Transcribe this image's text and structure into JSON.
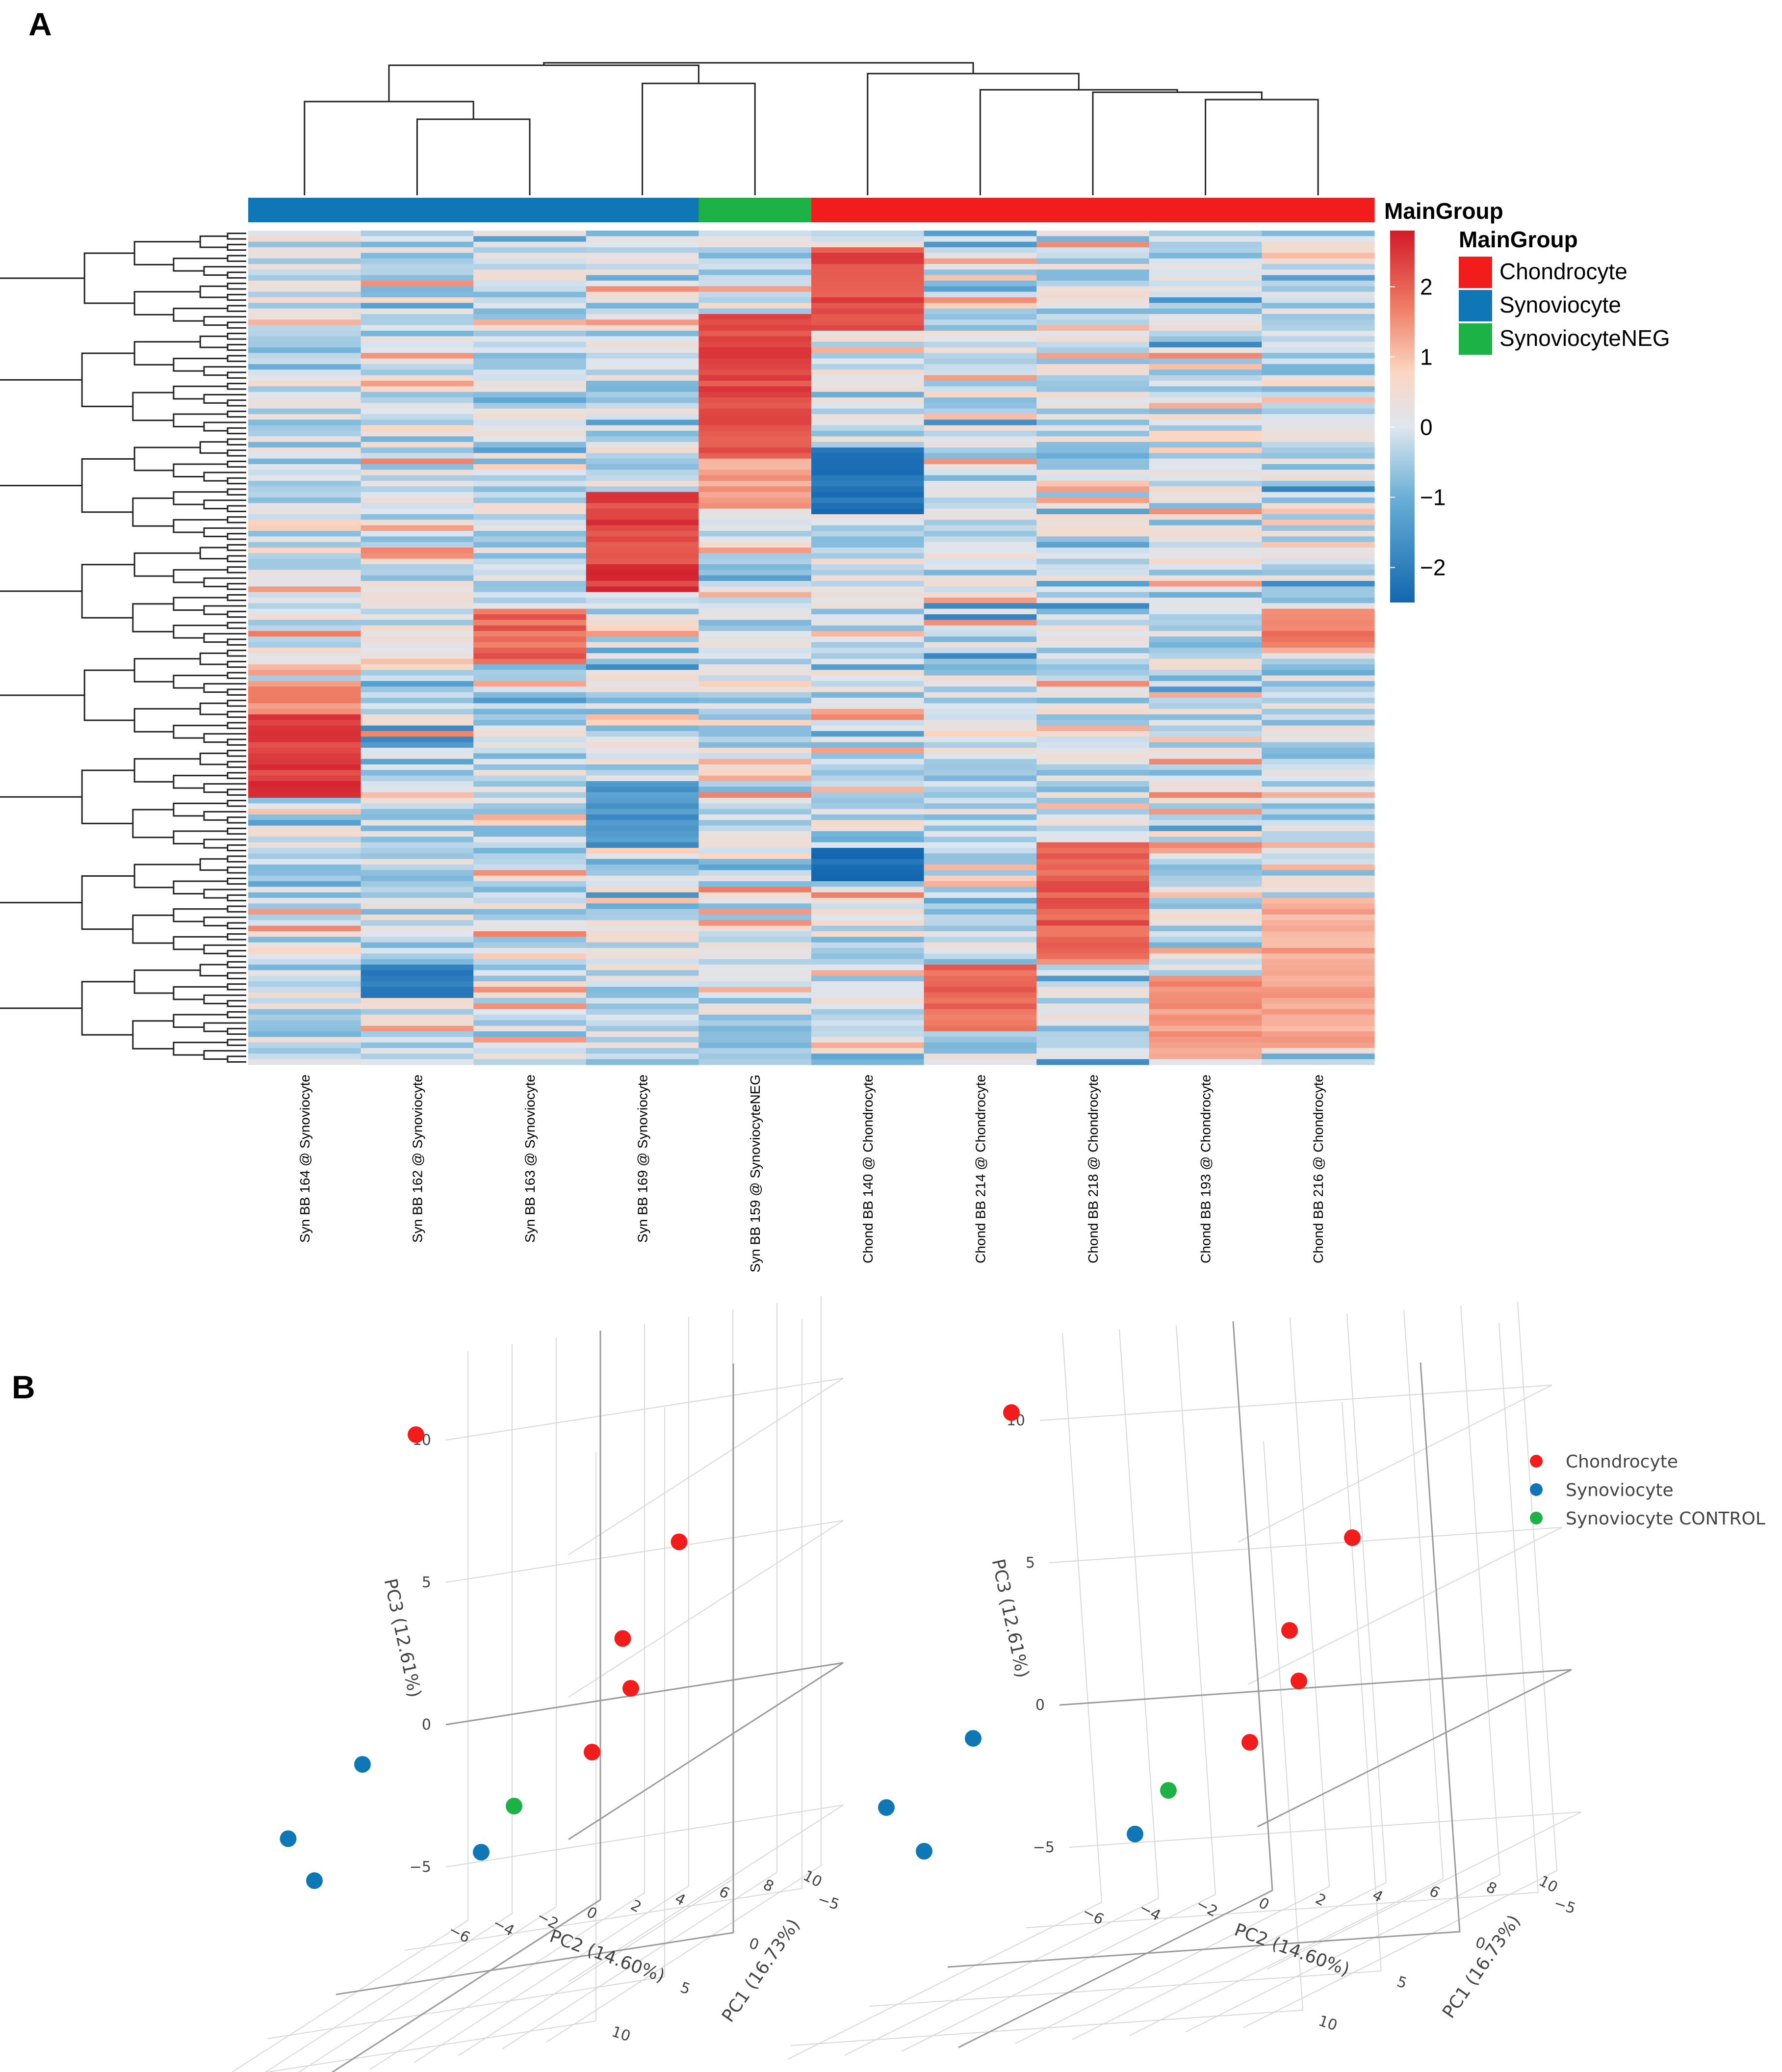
{
  "panels": {
    "a": "A",
    "b": "B"
  },
  "colors": {
    "chondrocyte": "#f31c1c",
    "synoviocyte": "#0f77b6",
    "synoviocyte_neg": "#1db246",
    "heat_low": "#1267b0",
    "heat_mid": "#dde6ef",
    "heat_high": "#d11a2a"
  },
  "chart_data": [
    {
      "type": "heatmap",
      "annotation": {
        "bar_label": "MainGroup",
        "legend_title": "MainGroup",
        "legend_items": [
          {
            "label": "Chondrocyte",
            "color": "#f31c1c"
          },
          {
            "label": "Synoviocyte",
            "color": "#0f77b6"
          },
          {
            "label": "SynoviocyteNEG",
            "color": "#1db246"
          }
        ]
      },
      "columns": [
        {
          "label": "Syn BB 164 @ Synoviocyte",
          "group": "Synoviocyte"
        },
        {
          "label": "Syn BB 162 @ Synoviocyte",
          "group": "Synoviocyte"
        },
        {
          "label": "Syn BB 163 @ Synoviocyte",
          "group": "Synoviocyte"
        },
        {
          "label": "Syn BB 169 @ Synoviocyte",
          "group": "Synoviocyte"
        },
        {
          "label": "Syn BB 159 @ SynoviocyteNEG",
          "group": "SynoviocyteNEG"
        },
        {
          "label": "Chond BB 140 @ Chondrocyte",
          "group": "Chondrocyte"
        },
        {
          "label": "Chond BB 214 @ Chondrocyte",
          "group": "Chondrocyte"
        },
        {
          "label": "Chond BB 218 @ Chondrocyte",
          "group": "Chondrocyte"
        },
        {
          "label": "Chond BB 193 @ Chondrocyte",
          "group": "Chondrocyte"
        },
        {
          "label": "Chond BB 216 @ Chondrocyte",
          "group": "Chondrocyte"
        }
      ],
      "row_count": 150,
      "color_scale": {
        "min": -2.5,
        "max": 2.8,
        "ticks": [
          "2",
          "1",
          "0",
          "−1",
          "−2"
        ],
        "tick_values": [
          2,
          1,
          0,
          -1,
          -2
        ]
      },
      "cluster_blocks": [
        {
          "column": 0,
          "rows_from": 0.58,
          "rows_to": 0.68,
          "value": 2.5
        },
        {
          "column": 0,
          "rows_from": 0.54,
          "rows_to": 0.58,
          "value": 1.6
        },
        {
          "column": 2,
          "rows_from": 0.45,
          "rows_to": 0.52,
          "value": 2.0
        },
        {
          "column": 3,
          "rows_from": 0.31,
          "rows_to": 0.43,
          "value": 2.4
        },
        {
          "column": 4,
          "rows_from": 0.1,
          "rows_to": 0.27,
          "value": 2.3
        },
        {
          "column": 4,
          "rows_from": 0.27,
          "rows_to": 0.33,
          "value": 1.4
        },
        {
          "column": 5,
          "rows_from": 0.02,
          "rows_to": 0.12,
          "value": 2.3
        },
        {
          "column": 5,
          "rows_from": 0.26,
          "rows_to": 0.34,
          "value": -2.2
        },
        {
          "column": 5,
          "rows_from": 0.74,
          "rows_to": 0.78,
          "value": -2.3
        },
        {
          "column": 6,
          "rows_from": 0.88,
          "rows_to": 0.96,
          "value": 1.9
        },
        {
          "column": 7,
          "rows_from": 0.73,
          "rows_to": 0.87,
          "value": 2.1
        },
        {
          "column": 8,
          "rows_from": 0.89,
          "rows_to": 0.99,
          "value": 1.5
        },
        {
          "column": 9,
          "rows_from": 0.8,
          "rows_to": 0.98,
          "value": 1.3
        },
        {
          "column": 9,
          "rows_from": 0.45,
          "rows_to": 0.5,
          "value": 1.7
        },
        {
          "column": 3,
          "rows_from": 0.66,
          "rows_to": 0.74,
          "value": -1.5
        },
        {
          "column": 1,
          "rows_from": 0.88,
          "rows_to": 0.92,
          "value": -2.0
        }
      ]
    },
    {
      "type": "scatter3d",
      "xlabel": "PC1 (16.73%)",
      "ylabel": "PC2 (14.60%)",
      "zlabel": "PC3 (12.61%)",
      "x_ticks": [
        "−5",
        "0",
        "5",
        "10"
      ],
      "y_ticks": [
        "−6",
        "−4",
        "−2",
        "0",
        "2",
        "4",
        "6",
        "8",
        "10"
      ],
      "z_ticks": [
        "−5",
        "0",
        "5",
        "10"
      ],
      "legend": [
        {
          "label": "Chondrocyte",
          "color": "#f31c1c"
        },
        {
          "label": "Synoviocyte",
          "color": "#0f77b6"
        },
        {
          "label": "Synoviocyte CONTROL",
          "color": "#1db246"
        }
      ],
      "views": [
        {
          "name": "left",
          "points": [
            {
              "group": "Chondrocyte",
              "pc1": -1.0,
              "pc2": -4.0,
              "pc3": 12.0
            },
            {
              "group": "Chondrocyte",
              "pc1": -6.5,
              "pc2": 4.5,
              "pc3": 5.5
            },
            {
              "group": "Chondrocyte",
              "pc1": -4.0,
              "pc2": 3.5,
              "pc3": 3.0
            },
            {
              "group": "Chondrocyte",
              "pc1": -7.0,
              "pc2": 2.0,
              "pc3": 0.5
            },
            {
              "group": "Chondrocyte",
              "pc1": -9.0,
              "pc2": -1.0,
              "pc3": -2.0
            },
            {
              "group": "Synoviocyte",
              "pc1": 4.5,
              "pc2": -3.0,
              "pc3": 2.0
            },
            {
              "group": "Synoviocyte",
              "pc1": 7.5,
              "pc2": -4.5,
              "pc3": 0.5
            },
            {
              "group": "Synoviocyte",
              "pc1": 8.0,
              "pc2": -3.0,
              "pc3": -1.0
            },
            {
              "group": "Synoviocyte",
              "pc1": 5.5,
              "pc2": 3.0,
              "pc3": -1.5
            },
            {
              "group": "Synoviocyte CONTROL",
              "pc1": 1.5,
              "pc2": 2.0,
              "pc3": -1.0
            }
          ]
        },
        {
          "name": "right",
          "points": [
            {
              "group": "Chondrocyte",
              "pc1": -1.0,
              "pc2": -4.0,
              "pc3": 12.0
            },
            {
              "group": "Chondrocyte",
              "pc1": -6.5,
              "pc2": 4.5,
              "pc3": 5.5
            },
            {
              "group": "Chondrocyte",
              "pc1": -4.0,
              "pc2": 3.5,
              "pc3": 3.0
            },
            {
              "group": "Chondrocyte",
              "pc1": -7.0,
              "pc2": 2.0,
              "pc3": 0.5
            },
            {
              "group": "Chondrocyte",
              "pc1": -9.0,
              "pc2": -1.0,
              "pc3": -2.0
            },
            {
              "group": "Synoviocyte",
              "pc1": 4.5,
              "pc2": -3.0,
              "pc3": 2.0
            },
            {
              "group": "Synoviocyte",
              "pc1": 7.5,
              "pc2": -4.5,
              "pc3": 0.5
            },
            {
              "group": "Synoviocyte",
              "pc1": 8.0,
              "pc2": -3.0,
              "pc3": -1.0
            },
            {
              "group": "Synoviocyte",
              "pc1": 5.5,
              "pc2": 3.0,
              "pc3": -1.5
            },
            {
              "group": "Synoviocyte CONTROL",
              "pc1": 1.5,
              "pc2": 2.0,
              "pc3": -1.0
            }
          ]
        }
      ]
    }
  ]
}
